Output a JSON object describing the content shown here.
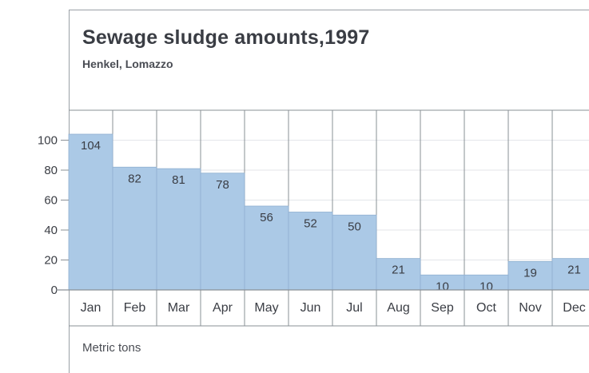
{
  "chart_data": {
    "type": "bar",
    "title": "Sewage sludge amounts,1997",
    "subtitle": "Henkel, Lomazzo",
    "unit_label": "Metric tons",
    "categories": [
      "Jan",
      "Feb",
      "Mar",
      "Apr",
      "May",
      "Jun",
      "Jul",
      "Aug",
      "Sep",
      "Oct",
      "Nov",
      "Dec"
    ],
    "values": [
      104,
      82,
      81,
      78,
      56,
      52,
      50,
      21,
      10,
      10,
      19,
      21
    ],
    "data_labels": [
      "104",
      "82",
      "81",
      "78",
      "56",
      "52",
      "50",
      "21",
      "10",
      "10",
      "19",
      "21"
    ],
    "y_ticks": [
      0,
      20,
      40,
      60,
      80,
      100
    ],
    "y_tick_labels": [
      "0",
      "20",
      "40",
      "60",
      "80",
      "100"
    ],
    "ylim": [
      0,
      120
    ],
    "grid": true,
    "colors": {
      "bar": "#abc9e6",
      "bar_edge": "#8fb0d0",
      "grid": "#8a9096",
      "text": "#3a3d44"
    }
  }
}
